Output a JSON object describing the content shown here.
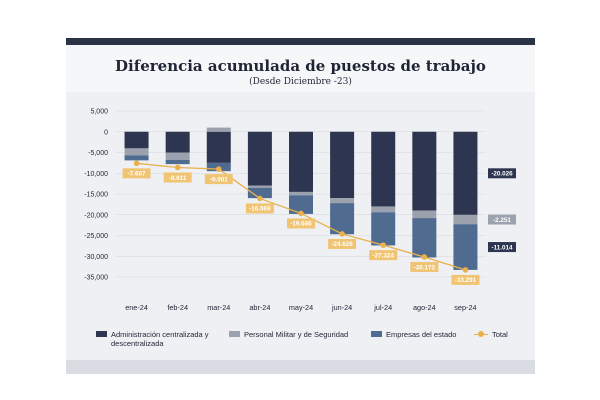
{
  "header": {
    "title": "Diferencia acumulada de puestos de trabajo",
    "subtitle": "(Desde Diciembre -23)"
  },
  "colors": {
    "admin": "#2d3550",
    "militar": "#9ba1ad",
    "empresas": "#4f6b8f",
    "total": "#e9b04b",
    "total_label_bg": "#f0c472",
    "grid": "#d3d7de"
  },
  "legend": {
    "admin": "Administración centralizada y descentralizada",
    "militar": "Personal Militar y de Seguridad",
    "empresas": "Empresas del estado",
    "total": "Total"
  },
  "chart_data": {
    "type": "bar",
    "stacked": true,
    "categories": [
      "ene-24",
      "feb-24",
      "mar-24",
      "abr-24",
      "may-24",
      "jun-24",
      "jul-24",
      "ago-24",
      "sep-24"
    ],
    "series": [
      {
        "name": "Administración centralizada y descentralizada",
        "key": "admin",
        "values": [
          -4000,
          -5000,
          -7500,
          -13000,
          -14500,
          -16000,
          -18000,
          -19000,
          -20026
        ]
      },
      {
        "name": "Personal Militar y de Seguridad",
        "key": "militar",
        "values": [
          -1700,
          -1800,
          1000,
          -500,
          -800,
          -1200,
          -1400,
          -1800,
          -2251
        ]
      },
      {
        "name": "Empresas del estado",
        "key": "empresas",
        "values": [
          -1200,
          -1000,
          -2000,
          -2500,
          -4500,
          -7500,
          -8000,
          -9500,
          -11014
        ]
      }
    ],
    "total": {
      "name": "Total",
      "values": [
        -7607,
        -8611,
        -9001,
        -16069,
        -19686,
        -24626,
        -27324,
        -30172,
        -33291
      ],
      "labels": [
        "-7.607",
        "-8.611",
        "-9.001",
        "-16.069",
        "-19.686",
        "-24.626",
        "-27.324",
        "-30.172",
        "-33.291"
      ]
    },
    "end_labels": [
      "-20.026",
      "-2.251",
      "-11.014"
    ],
    "yticks": [
      5000,
      0,
      -5000,
      -10000,
      -15000,
      -20000,
      -25000,
      -30000,
      -35000
    ],
    "ytick_labels": [
      "5,000",
      "0",
      "-5,000",
      "-10,000",
      "-15,000",
      "-20,000",
      "-25,000",
      "-30,000",
      "-35,000"
    ],
    "ylim": [
      -35000,
      5000
    ],
    "grid": true,
    "legend_position": "bottom"
  }
}
